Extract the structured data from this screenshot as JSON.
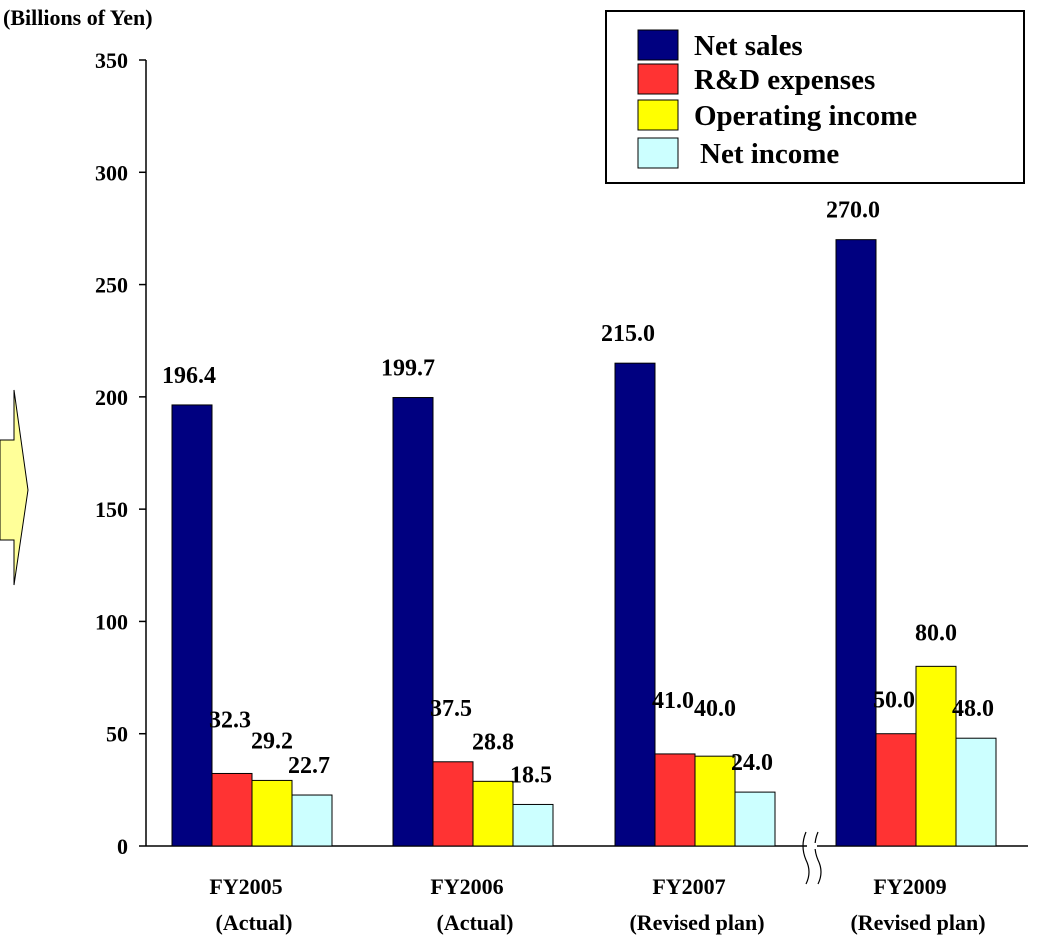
{
  "chart_data": {
    "type": "bar",
    "ylabel": "(Billions of Yen)",
    "ylim": [
      0,
      350
    ],
    "yticks": [
      0,
      50,
      100,
      150,
      200,
      250,
      300,
      350
    ],
    "categories": [
      {
        "label": "FY2005",
        "sublabel": "(Actual)"
      },
      {
        "label": "FY2006",
        "sublabel": "(Actual)"
      },
      {
        "label": "FY2007",
        "sublabel": "(Revised plan)"
      },
      {
        "label": "FY2009",
        "sublabel": "(Revised plan)"
      }
    ],
    "series": [
      {
        "name": "Net sales",
        "color": "#000080",
        "values": [
          196.4,
          199.7,
          215.0,
          270.0
        ],
        "labels": [
          "196.4",
          "199.7",
          "215.0",
          "270.0"
        ]
      },
      {
        "name": "R&D expenses",
        "color": "#ff3333",
        "values": [
          32.3,
          37.5,
          41.0,
          50.0
        ],
        "labels": [
          "32.3",
          "37.5",
          "41.0",
          "50.0"
        ]
      },
      {
        "name": "Operating income",
        "color": "#ffff00",
        "values": [
          29.2,
          28.8,
          40.0,
          80.0
        ],
        "labels": [
          "29.2",
          "28.8",
          "40.0",
          "80.0"
        ]
      },
      {
        "name": "Net income",
        "color": "#ccffff",
        "values": [
          22.7,
          18.5,
          24.0,
          48.0
        ],
        "labels": [
          "22.7",
          "18.5",
          "24.0",
          "48.0"
        ]
      }
    ],
    "axis_break": "between FY2007 and FY2009",
    "legend_position": "top-right",
    "grid": false,
    "decoration": {
      "arrow_color": "#ffff99"
    }
  }
}
